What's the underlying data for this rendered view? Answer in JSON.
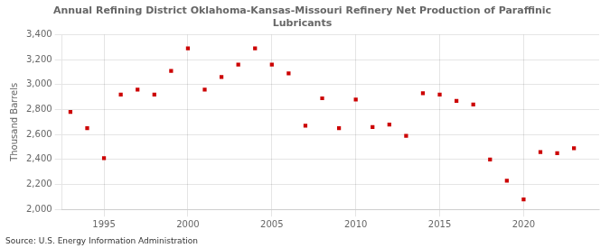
{
  "chart_data": {
    "type": "scatter",
    "title": "Annual Refining District Oklahoma-Kansas-Missouri Refinery Net Production of Paraffinic\nLubricants",
    "ylabel": "Thousand Barrels",
    "source": "Source: U.S. Energy Information Administration",
    "x": [
      1993,
      1994,
      1995,
      1996,
      1997,
      1998,
      1999,
      2000,
      2001,
      2002,
      2003,
      2004,
      2005,
      2006,
      2007,
      2008,
      2009,
      2010,
      2011,
      2012,
      2013,
      2014,
      2015,
      2016,
      2017,
      2018,
      2019,
      2020,
      2021,
      2022,
      2023
    ],
    "values": [
      2780,
      2650,
      2410,
      2920,
      2960,
      2920,
      3110,
      3290,
      2960,
      3060,
      3160,
      3290,
      3160,
      3090,
      2670,
      2890,
      2650,
      2880,
      2660,
      2680,
      2590,
      2930,
      2920,
      2870,
      2840,
      2400,
      2230,
      2080,
      2460,
      2450,
      2490
    ],
    "color": "#cc0000",
    "marker": "square",
    "xlim": [
      1992.5,
      2024.5
    ],
    "xticks": [
      1995,
      2000,
      2005,
      2010,
      2015,
      2020
    ],
    "ylim": [
      2000,
      3400
    ],
    "yticks": [
      {
        "value": 2000,
        "label": "2,000"
      },
      {
        "value": 2200,
        "label": "2,200"
      },
      {
        "value": 2400,
        "label": "2,400"
      },
      {
        "value": 2600,
        "label": "2,600"
      },
      {
        "value": 2800,
        "label": "2,800"
      },
      {
        "value": 3000,
        "label": "3,000"
      },
      {
        "value": 3200,
        "label": "3,200"
      },
      {
        "value": 3400,
        "label": "3,400"
      }
    ],
    "grid": true
  }
}
